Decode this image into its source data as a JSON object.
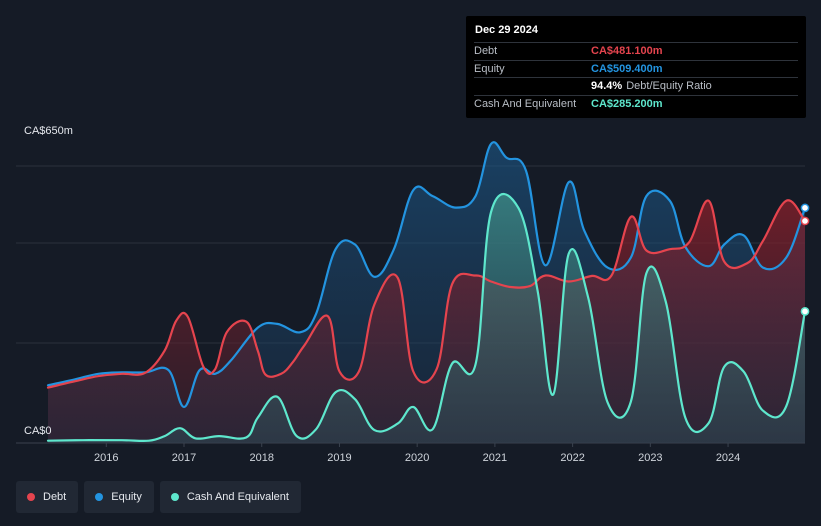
{
  "chart_data": {
    "type": "area",
    "title": "",
    "ylabel": "",
    "ylim": [
      0,
      650
    ],
    "y_tick_labels": [
      "CA$650m",
      "CA$0"
    ],
    "x_tick_labels": [
      "2016",
      "2017",
      "2018",
      "2019",
      "2020",
      "2021",
      "2022",
      "2023",
      "2024"
    ],
    "grid": true,
    "legend_position": "bottom-left",
    "series": [
      {
        "name": "Debt",
        "color": "#e5444e",
        "points": [
          [
            2015.25,
            120
          ],
          [
            2015.6,
            134
          ],
          [
            2015.9,
            145
          ],
          [
            2016.2,
            150
          ],
          [
            2016.5,
            152
          ],
          [
            2016.75,
            200
          ],
          [
            2016.9,
            265
          ],
          [
            2017.05,
            273
          ],
          [
            2017.25,
            165
          ],
          [
            2017.4,
            160
          ],
          [
            2017.55,
            240
          ],
          [
            2017.8,
            263
          ],
          [
            2017.95,
            200
          ],
          [
            2018.05,
            148
          ],
          [
            2018.25,
            150
          ],
          [
            2018.4,
            175
          ],
          [
            2018.55,
            212
          ],
          [
            2018.85,
            275
          ],
          [
            2019.0,
            155
          ],
          [
            2019.25,
            155
          ],
          [
            2019.45,
            300
          ],
          [
            2019.75,
            358
          ],
          [
            2019.95,
            155
          ],
          [
            2020.25,
            160
          ],
          [
            2020.45,
            344
          ],
          [
            2020.75,
            363
          ],
          [
            2020.95,
            350
          ],
          [
            2021.2,
            338
          ],
          [
            2021.45,
            340
          ],
          [
            2021.65,
            363
          ],
          [
            2021.95,
            350
          ],
          [
            2022.25,
            362
          ],
          [
            2022.5,
            363
          ],
          [
            2022.75,
            490
          ],
          [
            2022.95,
            417
          ],
          [
            2023.25,
            420
          ],
          [
            2023.5,
            435
          ],
          [
            2023.75,
            525
          ],
          [
            2023.95,
            393
          ],
          [
            2024.25,
            390
          ],
          [
            2024.45,
            438
          ],
          [
            2024.75,
            525
          ],
          [
            2024.99,
            481.1
          ]
        ]
      },
      {
        "name": "Equity",
        "color": "#2394e0",
        "points": [
          [
            2015.25,
            125
          ],
          [
            2015.6,
            138
          ],
          [
            2015.9,
            150
          ],
          [
            2016.2,
            153
          ],
          [
            2016.5,
            153
          ],
          [
            2016.8,
            158
          ],
          [
            2017.0,
            78
          ],
          [
            2017.2,
            158
          ],
          [
            2017.4,
            150
          ],
          [
            2017.6,
            178
          ],
          [
            2017.95,
            250
          ],
          [
            2018.2,
            258
          ],
          [
            2018.5,
            240
          ],
          [
            2018.7,
            280
          ],
          [
            2018.95,
            420
          ],
          [
            2019.2,
            430
          ],
          [
            2019.45,
            360
          ],
          [
            2019.7,
            420
          ],
          [
            2019.95,
            548
          ],
          [
            2020.2,
            535
          ],
          [
            2020.5,
            510
          ],
          [
            2020.75,
            535
          ],
          [
            2020.95,
            648
          ],
          [
            2021.15,
            618
          ],
          [
            2021.4,
            590
          ],
          [
            2021.65,
            385
          ],
          [
            2021.95,
            565
          ],
          [
            2022.15,
            460
          ],
          [
            2022.45,
            380
          ],
          [
            2022.75,
            402
          ],
          [
            2022.95,
            535
          ],
          [
            2023.25,
            525
          ],
          [
            2023.45,
            425
          ],
          [
            2023.75,
            383
          ],
          [
            2023.95,
            430
          ],
          [
            2024.2,
            450
          ],
          [
            2024.45,
            380
          ],
          [
            2024.75,
            402
          ],
          [
            2024.99,
            509.4
          ]
        ]
      },
      {
        "name": "Cash And Equivalent",
        "color": "#5ee7cd",
        "points": [
          [
            2015.25,
            5
          ],
          [
            2015.7,
            6
          ],
          [
            2016.2,
            6
          ],
          [
            2016.55,
            5
          ],
          [
            2016.75,
            15
          ],
          [
            2016.95,
            32
          ],
          [
            2017.15,
            10
          ],
          [
            2017.45,
            15
          ],
          [
            2017.8,
            12
          ],
          [
            2017.95,
            55
          ],
          [
            2018.2,
            100
          ],
          [
            2018.45,
            15
          ],
          [
            2018.7,
            30
          ],
          [
            2018.95,
            110
          ],
          [
            2019.2,
            95
          ],
          [
            2019.45,
            28
          ],
          [
            2019.75,
            42
          ],
          [
            2019.95,
            78
          ],
          [
            2020.2,
            30
          ],
          [
            2020.45,
            172
          ],
          [
            2020.75,
            170
          ],
          [
            2020.95,
            500
          ],
          [
            2021.3,
            510
          ],
          [
            2021.55,
            330
          ],
          [
            2021.75,
            105
          ],
          [
            2021.95,
            410
          ],
          [
            2022.2,
            315
          ],
          [
            2022.45,
            88
          ],
          [
            2022.75,
            90
          ],
          [
            2022.95,
            368
          ],
          [
            2023.2,
            305
          ],
          [
            2023.45,
            55
          ],
          [
            2023.75,
            43
          ],
          [
            2023.95,
            165
          ],
          [
            2024.2,
            155
          ],
          [
            2024.45,
            70
          ],
          [
            2024.75,
            80
          ],
          [
            2024.99,
            285.2
          ]
        ]
      }
    ]
  },
  "tooltip": {
    "date": "Dec 29 2024",
    "rows": [
      {
        "label": "Debt",
        "value": "CA$481.100m",
        "color": "#e5444e"
      },
      {
        "label": "Equity",
        "value": "CA$509.400m",
        "color": "#2394e0"
      },
      {
        "label": "Cash And Equivalent",
        "value": "CA$285.200m",
        "color": "#5ee7cd"
      }
    ],
    "ratio_value": "94.4%",
    "ratio_label": "Debt/Equity Ratio"
  },
  "legend": [
    {
      "label": "Debt",
      "color": "#e5444e"
    },
    {
      "label": "Equity",
      "color": "#2394e0"
    },
    {
      "label": "Cash And Equivalent",
      "color": "#5ee7cd"
    }
  ]
}
